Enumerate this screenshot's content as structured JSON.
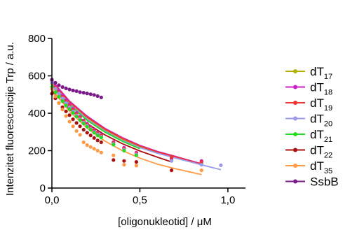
{
  "chart_data": {
    "type": "scatter",
    "ylabel": "Intenzitet fluorescencije Trp / a.u.",
    "xlabel": "[oligonukleotid] / μM",
    "xlim": [
      0,
      1.1
    ],
    "ylim": [
      0,
      800
    ],
    "x_ticks": [
      0,
      0.5,
      1.0
    ],
    "x_tick_labels": [
      "0,0",
      "0,5",
      "1,0"
    ],
    "y_ticks": [
      0,
      200,
      400,
      600,
      800
    ],
    "y_tick_labels": [
      "0",
      "200",
      "400",
      "600",
      "800"
    ],
    "grid": false,
    "legend_position": "right",
    "series": [
      {
        "name": "dT17",
        "label_main": "dT",
        "label_sub": "17",
        "color": "#b5b000",
        "fit": true,
        "x": [
          0.0,
          0.02,
          0.04,
          0.06,
          0.08,
          0.1,
          0.12,
          0.14,
          0.16,
          0.18,
          0.2,
          0.22,
          0.24,
          0.26,
          0.28,
          0.35,
          0.41,
          0.48,
          0.68,
          0.85
        ],
        "y": [
          560,
          530,
          505,
          480,
          455,
          433,
          410,
          390,
          370,
          352,
          335,
          318,
          302,
          290,
          278,
          240,
          210,
          185,
          150,
          130
        ],
        "fit_x": [
          0,
          0.1,
          0.2,
          0.3,
          0.4,
          0.5,
          0.6,
          0.7,
          0.85
        ],
        "fit_y": [
          565,
          455,
          375,
          310,
          260,
          220,
          190,
          165,
          125
        ]
      },
      {
        "name": "dT18",
        "label_main": "dT",
        "label_sub": "18",
        "color": "#cc22cc",
        "fit": true,
        "x": [
          0.0,
          0.02,
          0.04,
          0.06,
          0.08,
          0.1,
          0.12,
          0.14,
          0.16,
          0.18,
          0.2,
          0.22,
          0.24,
          0.26,
          0.28,
          0.35,
          0.41,
          0.48,
          0.68,
          0.85
        ],
        "y": [
          575,
          545,
          520,
          495,
          470,
          447,
          425,
          402,
          382,
          362,
          345,
          328,
          312,
          298,
          285,
          246,
          216,
          190,
          158,
          145
        ],
        "fit_x": [
          0,
          0.1,
          0.2,
          0.3,
          0.4,
          0.5,
          0.6,
          0.7,
          0.85
        ],
        "fit_y": [
          575,
          465,
          385,
          320,
          270,
          228,
          196,
          170,
          130
        ]
      },
      {
        "name": "dT19",
        "label_main": "dT",
        "label_sub": "19",
        "color": "#ee3333",
        "fit": true,
        "x": [
          0.0,
          0.02,
          0.04,
          0.06,
          0.08,
          0.1,
          0.12,
          0.14,
          0.16,
          0.18,
          0.2,
          0.22,
          0.24,
          0.26,
          0.28,
          0.35,
          0.41,
          0.48,
          0.68,
          0.85
        ],
        "y": [
          570,
          540,
          512,
          488,
          462,
          440,
          418,
          395,
          376,
          357,
          340,
          323,
          307,
          293,
          280,
          242,
          212,
          186,
          165,
          140
        ],
        "fit_x": [
          0,
          0.1,
          0.2,
          0.3,
          0.4,
          0.5,
          0.6,
          0.7,
          0.85
        ],
        "fit_y": [
          570,
          460,
          380,
          316,
          266,
          225,
          193,
          168,
          128
        ]
      },
      {
        "name": "dT20",
        "label_main": "dT",
        "label_sub": "20",
        "color": "#9999ee",
        "fit": true,
        "x": [
          0.0,
          0.02,
          0.04,
          0.06,
          0.08,
          0.1,
          0.12,
          0.14,
          0.16,
          0.18,
          0.2,
          0.22,
          0.24,
          0.26,
          0.28,
          0.35,
          0.41,
          0.48,
          0.68,
          0.85,
          0.96
        ],
        "y": [
          565,
          532,
          506,
          480,
          455,
          432,
          410,
          388,
          368,
          350,
          333,
          316,
          300,
          287,
          274,
          236,
          205,
          180,
          145,
          125,
          122
        ],
        "fit_x": [
          0,
          0.1,
          0.2,
          0.3,
          0.4,
          0.5,
          0.6,
          0.7,
          0.85,
          0.96
        ],
        "fit_y": [
          560,
          450,
          368,
          305,
          255,
          216,
          186,
          161,
          124,
          98
        ]
      },
      {
        "name": "dT21",
        "label_main": "dT",
        "label_sub": "21",
        "color": "#22dd22",
        "fit": true,
        "x": [
          0.0,
          0.02,
          0.04,
          0.06,
          0.08,
          0.1,
          0.12,
          0.14,
          0.16,
          0.18,
          0.2,
          0.22,
          0.24,
          0.26,
          0.28,
          0.35,
          0.41,
          0.48
        ],
        "y": [
          540,
          512,
          488,
          465,
          442,
          422,
          402,
          382,
          363,
          345,
          328,
          312,
          296,
          282,
          270,
          232,
          200,
          175
        ],
        "fit_x": [
          0,
          0.1,
          0.2,
          0.3,
          0.4,
          0.5
        ],
        "fit_y": [
          550,
          445,
          362,
          300,
          250,
          210
        ]
      },
      {
        "name": "dT22",
        "label_main": "dT",
        "label_sub": "22",
        "color": "#aa1111",
        "fit": true,
        "x": [
          0.0,
          0.02,
          0.04,
          0.06,
          0.08,
          0.1,
          0.12,
          0.14,
          0.16,
          0.18,
          0.2,
          0.22,
          0.24,
          0.26,
          0.28,
          0.35,
          0.41,
          0.48,
          0.68
        ],
        "y": [
          505,
          480,
          455,
          432,
          410,
          390,
          368,
          348,
          330,
          312,
          296,
          282,
          268,
          255,
          245,
          150,
          145,
          140,
          95
        ],
        "fit_x": [
          0,
          0.1,
          0.2,
          0.3,
          0.4,
          0.5,
          0.6,
          0.68
        ],
        "fit_y": [
          520,
          420,
          345,
          285,
          237,
          198,
          165,
          140
        ]
      },
      {
        "name": "dT35",
        "label_main": "dT",
        "label_sub": "35",
        "color": "#ff9944",
        "fit": true,
        "x": [
          0.0,
          0.02,
          0.04,
          0.06,
          0.08,
          0.1,
          0.12,
          0.14,
          0.16,
          0.18,
          0.2,
          0.22,
          0.24,
          0.26,
          0.28,
          0.35,
          0.41,
          0.48,
          0.85
        ],
        "y": [
          530,
          490,
          455,
          420,
          385,
          355,
          330,
          305,
          285,
          245,
          230,
          220,
          210,
          200,
          190,
          175,
          125,
          120,
          95
        ],
        "fit_x": [
          0,
          0.1,
          0.2,
          0.3,
          0.4,
          0.5,
          0.6,
          0.7,
          0.85
        ],
        "fit_y": [
          530,
          410,
          320,
          252,
          200,
          160,
          128,
          104,
          72
        ]
      },
      {
        "name": "SsbB",
        "label_main": "SsbB",
        "label_sub": "",
        "color": "#7a1a8a",
        "fit": false,
        "x": [
          0.0,
          0.02,
          0.04,
          0.06,
          0.08,
          0.1,
          0.12,
          0.14,
          0.16,
          0.18,
          0.2,
          0.22,
          0.24,
          0.26,
          0.28
        ],
        "y": [
          580,
          563,
          550,
          540,
          533,
          527,
          522,
          518,
          513,
          510,
          506,
          502,
          498,
          492,
          485
        ]
      }
    ]
  }
}
